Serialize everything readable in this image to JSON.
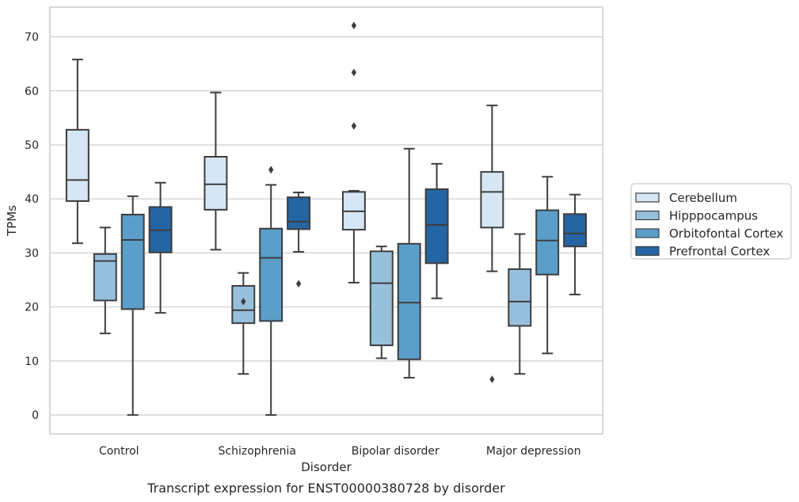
{
  "chart_data": {
    "type": "box",
    "caption": "Transcript expression for ENST00000380728 by disorder",
    "xlabel": "Disorder",
    "ylabel": "TPMs",
    "ylim": [
      -3.5,
      75.5
    ],
    "yticks": [
      0,
      10,
      20,
      30,
      40,
      50,
      60,
      70
    ],
    "grid": true,
    "legend_position": "right",
    "categories": [
      "Control",
      "Schizophrenia",
      "Bipolar disorder",
      "Major depression"
    ],
    "series": [
      {
        "name": "Cerebellum",
        "color": "#d6e6f4",
        "boxes": [
          {
            "whislo": 31.8,
            "q1": 39.6,
            "median": 43.5,
            "q3": 52.8,
            "whishi": 65.8,
            "fliers": []
          },
          {
            "whislo": 30.6,
            "q1": 38.0,
            "median": 42.7,
            "q3": 47.8,
            "whishi": 59.7,
            "fliers": []
          },
          {
            "whislo": 24.5,
            "q1": 34.3,
            "median": 37.7,
            "q3": 41.3,
            "whishi": 41.5,
            "fliers": [
              53.5,
              63.4,
              72.1
            ]
          },
          {
            "whislo": 26.6,
            "q1": 34.7,
            "median": 41.3,
            "q3": 45.0,
            "whishi": 57.3,
            "fliers": [
              6.6
            ]
          }
        ]
      },
      {
        "name": "Hipppocampus",
        "color": "#97c0dd",
        "boxes": [
          {
            "whislo": 15.1,
            "q1": 21.2,
            "median": 28.5,
            "q3": 29.8,
            "whishi": 34.7,
            "fliers": []
          },
          {
            "whislo": 7.6,
            "q1": 17.0,
            "median": 19.4,
            "q3": 23.9,
            "whishi": 26.3,
            "fliers": [
              21.0
            ]
          },
          {
            "whislo": 10.5,
            "q1": 12.9,
            "median": 24.4,
            "q3": 30.3,
            "whishi": 31.2,
            "fliers": []
          },
          {
            "whislo": 7.6,
            "q1": 16.5,
            "median": 21.0,
            "q3": 27.0,
            "whishi": 33.5,
            "fliers": []
          }
        ]
      },
      {
        "name": "Orbitofontal Cortex",
        "color": "#5a9ec9",
        "boxes": [
          {
            "whislo": 0.0,
            "q1": 19.6,
            "median": 32.4,
            "q3": 37.1,
            "whishi": 40.5,
            "fliers": []
          },
          {
            "whislo": 0.0,
            "q1": 17.4,
            "median": 29.1,
            "q3": 34.5,
            "whishi": 42.6,
            "fliers": [
              45.4
            ]
          },
          {
            "whislo": 6.9,
            "q1": 10.3,
            "median": 20.8,
            "q3": 31.7,
            "whishi": 49.3,
            "fliers": []
          },
          {
            "whislo": 11.4,
            "q1": 26.0,
            "median": 32.3,
            "q3": 37.9,
            "whishi": 44.1,
            "fliers": []
          }
        ]
      },
      {
        "name": "Prefrontal Cortex",
        "color": "#2565a3",
        "boxes": [
          {
            "whislo": 18.9,
            "q1": 30.1,
            "median": 34.2,
            "q3": 38.5,
            "whishi": 43.0,
            "fliers": []
          },
          {
            "whislo": 30.2,
            "q1": 34.4,
            "median": 35.8,
            "q3": 40.3,
            "whishi": 41.2,
            "fliers": [
              24.3
            ]
          },
          {
            "whislo": 21.6,
            "q1": 28.1,
            "median": 35.2,
            "q3": 41.8,
            "whishi": 46.5,
            "fliers": []
          },
          {
            "whislo": 22.3,
            "q1": 31.2,
            "median": 33.6,
            "q3": 37.2,
            "whishi": 40.8,
            "fliers": []
          }
        ]
      }
    ]
  }
}
